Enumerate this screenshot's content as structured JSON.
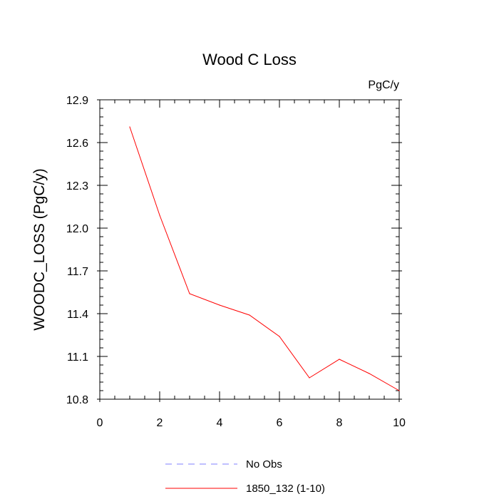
{
  "chart_data": {
    "type": "line",
    "title": "Wood C Loss",
    "units_label": "PgC/y",
    "ylabel": "WOODC_LOSS  (PgC/y)",
    "xlabel": "",
    "xlim": [
      0,
      10
    ],
    "ylim": [
      10.8,
      12.9
    ],
    "x_ticks": [
      0,
      2,
      4,
      6,
      8,
      10
    ],
    "y_ticks": [
      10.8,
      11.1,
      11.4,
      11.7,
      12.0,
      12.3,
      12.6,
      12.9
    ],
    "y_tick_labels": [
      "10.8",
      "11.1",
      "11.4",
      "11.7",
      "12.0",
      "12.3",
      "12.6",
      "12.9"
    ],
    "grid": false,
    "legend_position": "bottom",
    "series": [
      {
        "name": "No Obs",
        "color": "#8080ff",
        "dash": "dashed",
        "x": [],
        "values": []
      },
      {
        "name": "1850_132 (1-10)",
        "color": "#ff0000",
        "dash": "solid",
        "x": [
          1,
          2,
          3,
          4,
          5,
          6,
          7,
          8,
          9,
          10
        ],
        "values": [
          12.71,
          12.09,
          11.54,
          11.46,
          11.39,
          11.24,
          10.95,
          11.08,
          10.98,
          10.86
        ]
      }
    ]
  }
}
